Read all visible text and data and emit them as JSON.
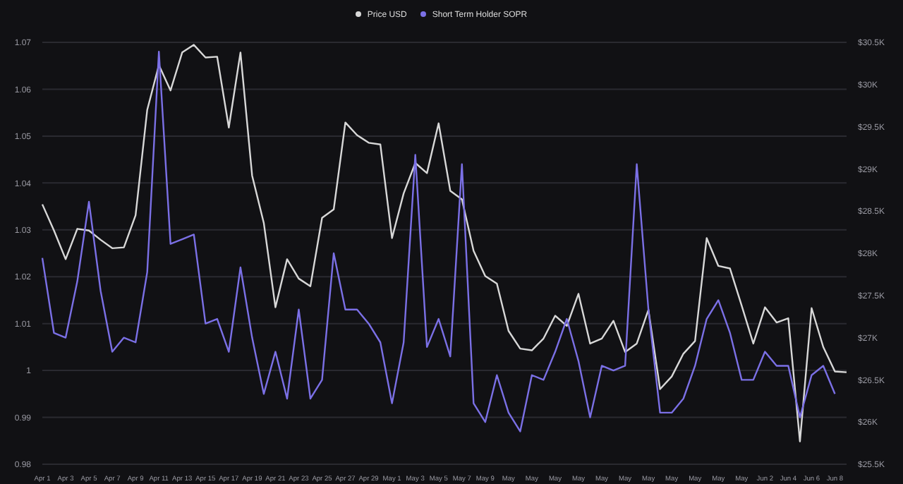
{
  "chart_data": {
    "type": "line",
    "categories": [
      "Apr 1",
      null,
      "Apr 3",
      null,
      "Apr 5",
      null,
      "Apr 7",
      null,
      "Apr 9",
      null,
      "Apr 11",
      null,
      "Apr 13",
      null,
      "Apr 15",
      null,
      "Apr 17",
      null,
      "Apr 19",
      null,
      "Apr 21",
      null,
      "Apr 23",
      null,
      "Apr 25",
      null,
      "Apr 27",
      null,
      "Apr 29",
      null,
      "May 1",
      null,
      "May 3",
      null,
      "May 5",
      null,
      "May 7",
      null,
      "May 9",
      null,
      "May",
      null,
      "May",
      null,
      "May",
      null,
      "May",
      null,
      "May",
      null,
      "May",
      null,
      "May",
      null,
      "May",
      null,
      "May",
      null,
      "May",
      null,
      "May",
      null,
      "Jun 2",
      null,
      "Jun 4",
      null,
      "Jun 6",
      null,
      "Jun 8",
      null
    ],
    "series": [
      {
        "name": "Price USD",
        "color": "#d8d8d8",
        "axis": "y2",
        "values": [
          28580,
          28270,
          27930,
          28290,
          28270,
          28160,
          28060,
          28070,
          28450,
          29700,
          30230,
          29930,
          30380,
          30470,
          30320,
          30330,
          29490,
          30380,
          28920,
          28360,
          27360,
          27930,
          27700,
          27610,
          28420,
          28520,
          29550,
          29400,
          29310,
          29290,
          28180,
          28710,
          29070,
          28950,
          29540,
          28740,
          28640,
          28030,
          27730,
          27640,
          27080,
          26870,
          26850,
          26990,
          27260,
          27140,
          27520,
          26930,
          26990,
          27200,
          26830,
          26930,
          27330,
          26390,
          26540,
          26810,
          26960,
          28180,
          27850,
          27820,
          27380,
          26930,
          27360,
          27180,
          27230,
          25770,
          27350,
          26890,
          26600,
          26590
        ]
      },
      {
        "name": "Short Term Holder SOPR",
        "color": "#7b70e6",
        "axis": "y",
        "values": [
          1.024,
          1.008,
          1.007,
          1.019,
          1.036,
          1.017,
          1.004,
          1.007,
          1.006,
          1.021,
          1.068,
          1.027,
          1.028,
          1.029,
          1.01,
          1.011,
          1.004,
          1.022,
          1.007,
          0.995,
          1.004,
          0.994,
          1.013,
          0.994,
          0.998,
          1.025,
          1.013,
          1.013,
          1.01,
          1.006,
          0.993,
          1.006,
          1.046,
          1.005,
          1.011,
          1.003,
          1.044,
          0.993,
          0.989,
          0.999,
          0.991,
          0.987,
          0.999,
          0.998,
          1.004,
          1.011,
          1.002,
          0.99,
          1.001,
          1.0,
          1.001,
          1.044,
          1.013,
          0.991,
          0.991,
          0.994,
          1.001,
          1.011,
          1.015,
          1.008,
          0.998,
          0.998,
          1.004,
          1.001,
          1.001,
          0.99,
          0.999,
          1.001,
          0.995,
          null
        ]
      }
    ],
    "ylim": [
      0.98,
      1.07
    ],
    "yticks": [
      0.98,
      0.99,
      1,
      1.01,
      1.02,
      1.03,
      1.04,
      1.05,
      1.06,
      1.07
    ],
    "y2lim": [
      25500,
      30500
    ],
    "y2ticks": [
      {
        "value": 25500,
        "label": "$25.5K"
      },
      {
        "value": 26000,
        "label": "$26K"
      },
      {
        "value": 26500,
        "label": "$26.5K"
      },
      {
        "value": 27000,
        "label": "$27K"
      },
      {
        "value": 27500,
        "label": "$27.5K"
      },
      {
        "value": 28000,
        "label": "$28K"
      },
      {
        "value": 28500,
        "label": "$28.5K"
      },
      {
        "value": 29000,
        "label": "$29K"
      },
      {
        "value": 29500,
        "label": "$29.5K"
      },
      {
        "value": 30000,
        "label": "$30K"
      },
      {
        "value": 30500,
        "label": "$30.5K"
      }
    ],
    "grid": "y",
    "legend": "top"
  }
}
